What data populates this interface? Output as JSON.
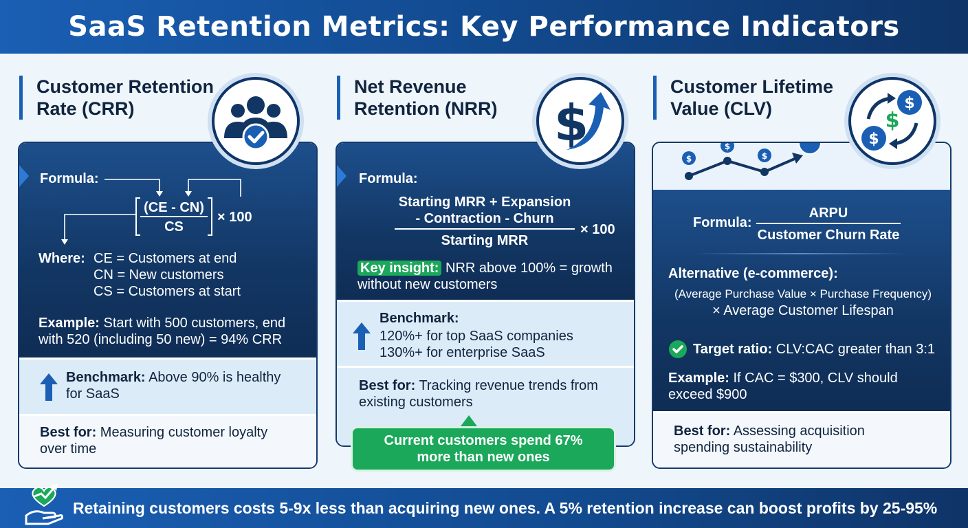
{
  "title": "SaaS Retention Metrics: Key Performance Indicators",
  "crr": {
    "title_line1": "Customer Retention",
    "title_line2": "Rate (CRR)",
    "icon": "users-check-icon",
    "formula_label": "Formula:",
    "formula_numerator": "(CE - CN)",
    "formula_denominator": "CS",
    "formula_multiplier": "× 100",
    "where_label": "Where:",
    "where_ce": "CE = Customers at end",
    "where_cn": "CN = New customers",
    "where_cs": "CS = Customers at start",
    "example_label": "Example:",
    "example_text_1": "Start with 500 customers, end",
    "example_text_2": "with 520 (including 50 new) = 94% CRR",
    "benchmark_label": "Benchmark:",
    "benchmark_text_1": "Above 90% is healthy",
    "benchmark_text_2": "for SaaS",
    "best_label": "Best for:",
    "best_text_1": "Measuring customer loyalty",
    "best_text_2": "over time"
  },
  "nrr": {
    "title_line1": "Net Revenue",
    "title_line2": "Retention (NRR)",
    "icon": "dollar-growth-icon",
    "formula_label": "Formula:",
    "formula_num_1": "Starting MRR + Expansion",
    "formula_num_2": "- Contraction - Churn",
    "formula_denominator": "Starting MRR",
    "formula_multiplier": "× 100",
    "insight_label": "Key insight:",
    "insight_text_1": "NRR above 100% = growth",
    "insight_text_2": "without new customers",
    "benchmark_label": "Benchmark:",
    "benchmark_text_1": "120%+ for top SaaS companies",
    "benchmark_text_2": "130%+ for enterprise SaaS",
    "best_label": "Best for:",
    "best_text_1": "Tracking revenue trends from",
    "best_text_2": "existing customers",
    "callout_1": "Current customers spend 67%",
    "callout_2": "more than new ones"
  },
  "clv": {
    "title_line1": "Customer Lifetime",
    "title_line2": "Value (CLV)",
    "icon": "dollar-cycle-icon",
    "formula_label": "Formula:",
    "formula_numerator": "ARPU",
    "formula_denominator": "Customer Churn Rate",
    "alt_label": "Alternative (e-commerce):",
    "alt_text_1": "(Average Purchase Value × Purchase Frequency)",
    "alt_text_2": "× Average Customer Lifespan",
    "target_label": "Target ratio:",
    "target_text": "CLV:CAC greater than 3:1",
    "example_label": "Example:",
    "example_text_1": "If CAC = $300, CLV should",
    "example_text_2": "exceed $900",
    "best_label": "Best for:",
    "best_text_1": "Assessing acquisition",
    "best_text_2": "spending sustainability"
  },
  "footer": {
    "text": "Retaining customers costs 5-9x less than acquiring new ones. A 5% retention increase can boost profits by 25-95%",
    "icon": "heart-hand-growth-icon"
  },
  "colors": {
    "primary": "#1a5fb4",
    "navy": "#0f3467",
    "green": "#1ba85a",
    "light_panel": "#dcebf8"
  }
}
